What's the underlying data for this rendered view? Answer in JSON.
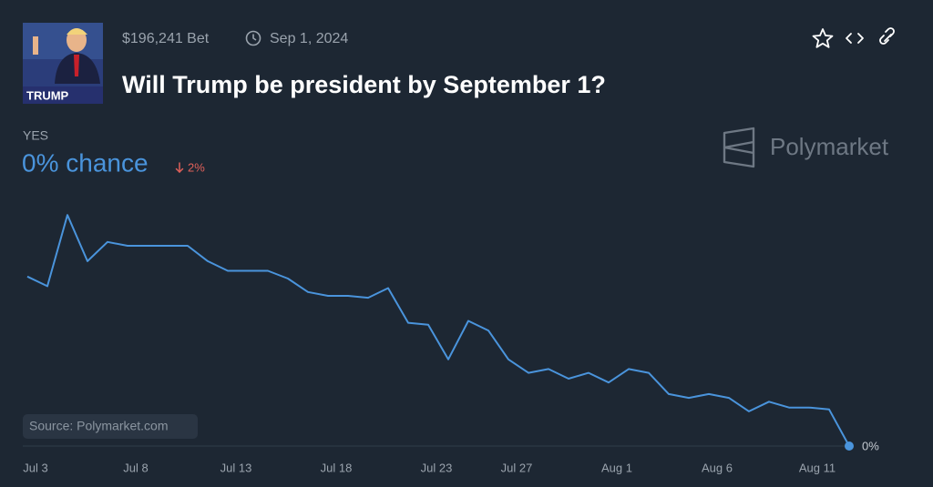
{
  "header": {
    "image_caption": "TRUMP",
    "volume": "$196,241 Bet",
    "end_date": "Sep 1, 2024",
    "title": "Will Trump be president by September 1?"
  },
  "summary": {
    "chance": "0% chance",
    "change": "2%"
  },
  "brand": "Polymarket",
  "source": "Source: Polymarket.com",
  "chart_data": {
    "type": "line",
    "x": [
      "Jul 3",
      "Jul 4",
      "Jul 5",
      "Jul 6",
      "Jul 7",
      "Jul 8",
      "Jul 9",
      "Jul 10",
      "Jul 11",
      "Jul 12",
      "Jul 13",
      "Jul 14",
      "Jul 15",
      "Jul 16",
      "Jul 17",
      "Jul 18",
      "Jul 19",
      "Jul 20",
      "Jul 21",
      "Jul 22",
      "Jul 23",
      "Jul 24",
      "Jul 25",
      "Jul 26",
      "Jul 27",
      "Jul 28",
      "Jul 29",
      "Jul 30",
      "Jul 31",
      "Aug 1",
      "Aug 2",
      "Aug 3",
      "Aug 4",
      "Aug 5",
      "Aug 6",
      "Aug 7",
      "Aug 8",
      "Aug 9",
      "Aug 10",
      "Aug 11",
      "Aug 12",
      "Aug 13"
    ],
    "xticks": [
      "Jul 3",
      "Jul 8",
      "Jul 13",
      "Jul 18",
      "Jul 23",
      "Jul 27",
      "Aug 1",
      "Aug 6",
      "Aug 11"
    ],
    "series": [
      {
        "name": "YES",
        "color": "#4a94dc",
        "values": [
          8.8,
          8.3,
          12.0,
          9.6,
          10.6,
          10.4,
          10.4,
          10.4,
          10.4,
          9.6,
          9.1,
          9.1,
          9.1,
          8.7,
          8.0,
          7.8,
          7.8,
          7.7,
          8.2,
          6.4,
          6.3,
          4.5,
          6.5,
          6.0,
          4.5,
          3.8,
          4.0,
          3.5,
          3.8,
          3.3,
          4.0,
          3.8,
          2.7,
          2.5,
          2.7,
          2.5,
          1.8,
          2.3,
          2.0,
          2.0,
          1.9,
          0
        ]
      }
    ],
    "ylim": [
      0,
      13
    ],
    "yticks": [
      {
        "value": 0,
        "label": "0%"
      }
    ],
    "grid": true
  }
}
